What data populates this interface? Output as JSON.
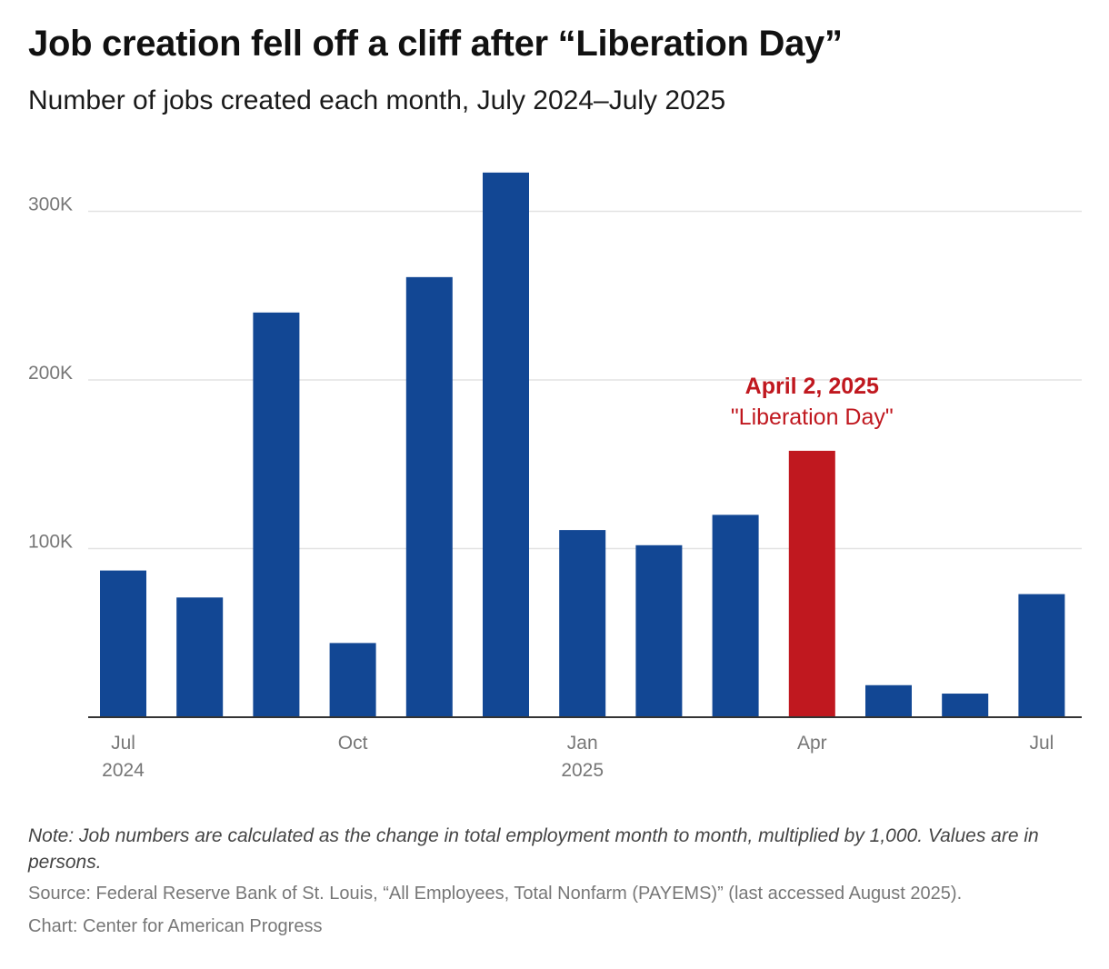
{
  "chart_data": {
    "type": "bar",
    "title": "Job creation fell off a cliff after “Liberation Day”",
    "subtitle": "Number of jobs created each month, July 2024–July 2025",
    "categories": [
      "2024-07",
      "2024-08",
      "2024-09",
      "2024-10",
      "2024-11",
      "2024-12",
      "2025-01",
      "2025-02",
      "2025-03",
      "2025-04",
      "2025-05",
      "2025-06",
      "2025-07"
    ],
    "values": [
      87000,
      71000,
      240000,
      44000,
      261000,
      323000,
      111000,
      102000,
      120000,
      158000,
      19000,
      14000,
      73000
    ],
    "highlight_index": 9,
    "colors": {
      "bar": "#124794",
      "highlight": "#c0181f",
      "grid": "#e3e3e3",
      "axis": "#333333",
      "tick_text": "#777777"
    },
    "ylim": [
      0,
      330000
    ],
    "yticks": [
      {
        "value": 100000,
        "label": "100K"
      },
      {
        "value": 200000,
        "label": "200K"
      },
      {
        "value": 300000,
        "label": "300K"
      }
    ],
    "xticks": [
      {
        "index": 0,
        "label": "Jul",
        "sublabel": "2024"
      },
      {
        "index": 3,
        "label": "Oct",
        "sublabel": ""
      },
      {
        "index": 6,
        "label": "Jan",
        "sublabel": "2025"
      },
      {
        "index": 9,
        "label": "Apr",
        "sublabel": ""
      },
      {
        "index": 12,
        "label": "Jul",
        "sublabel": ""
      }
    ],
    "grid": true,
    "annotation": {
      "index": 9,
      "line1": "April 2, 2025",
      "line2": "\"Liberation Day\""
    }
  },
  "footer": {
    "note": "Note: Job numbers are calculated as the change in total employment month to month, multiplied by 1,000. Values are in persons.",
    "source": "Source: Federal Reserve Bank of St. Louis, “All Employees, Total Nonfarm (PAYEMS)” (last accessed August 2025).",
    "credit": "Chart: Center for American Progress"
  }
}
